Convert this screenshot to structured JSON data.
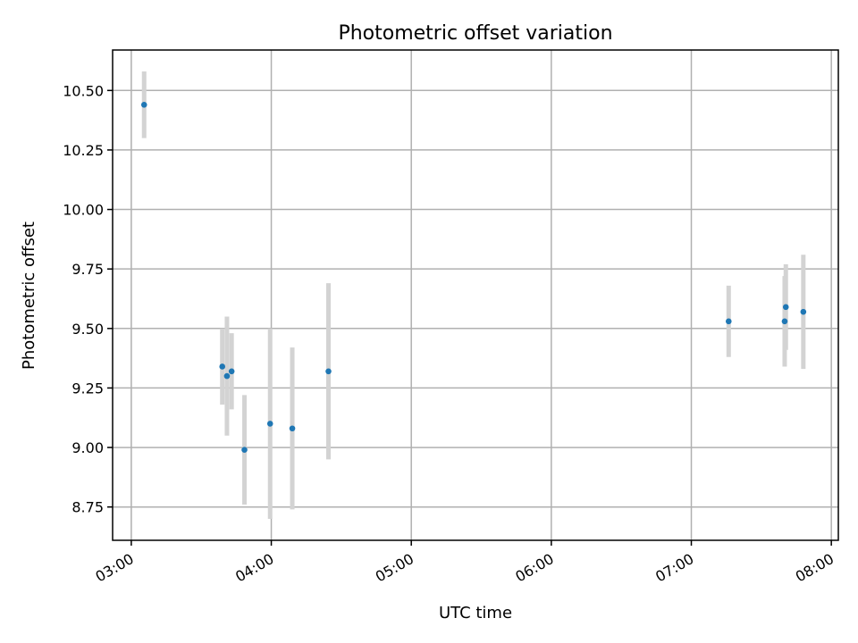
{
  "chart_data": {
    "type": "scatter",
    "title": "Photometric offset variation",
    "xlabel": "UTC time",
    "ylabel": "Photometric offset",
    "xlim": [
      "02:52",
      "08:03"
    ],
    "ylim": [
      8.61,
      10.67
    ],
    "grid": true,
    "x_ticks": [
      "03:00",
      "04:00",
      "05:00",
      "06:00",
      "07:00",
      "08:00"
    ],
    "y_ticks": [
      "8.75",
      "9.00",
      "9.25",
      "9.50",
      "9.75",
      "10.00",
      "10.25",
      "10.50"
    ],
    "colors": {
      "point": "#1f77b4",
      "errorbar": "#d3d3d3"
    },
    "points": [
      {
        "x": "03:05.5",
        "y": 10.44,
        "err": 0.14
      },
      {
        "x": "03:39.0",
        "y": 9.34,
        "err": 0.16
      },
      {
        "x": "03:41.0",
        "y": 9.3,
        "err": 0.25
      },
      {
        "x": "03:43.0",
        "y": 9.32,
        "err": 0.16
      },
      {
        "x": "03:48.5",
        "y": 8.99,
        "err": 0.23
      },
      {
        "x": "03:59.5",
        "y": 9.1,
        "err": 0.4
      },
      {
        "x": "04:09.0",
        "y": 9.08,
        "err": 0.34
      },
      {
        "x": "04:24.5",
        "y": 9.32,
        "err": 0.37
      },
      {
        "x": "07:16.0",
        "y": 9.53,
        "err": 0.15
      },
      {
        "x": "07:40.0",
        "y": 9.53,
        "err": 0.19
      },
      {
        "x": "07:40.5",
        "y": 9.59,
        "err": 0.18
      },
      {
        "x": "07:48.0",
        "y": 9.57,
        "err": 0.24
      }
    ]
  }
}
